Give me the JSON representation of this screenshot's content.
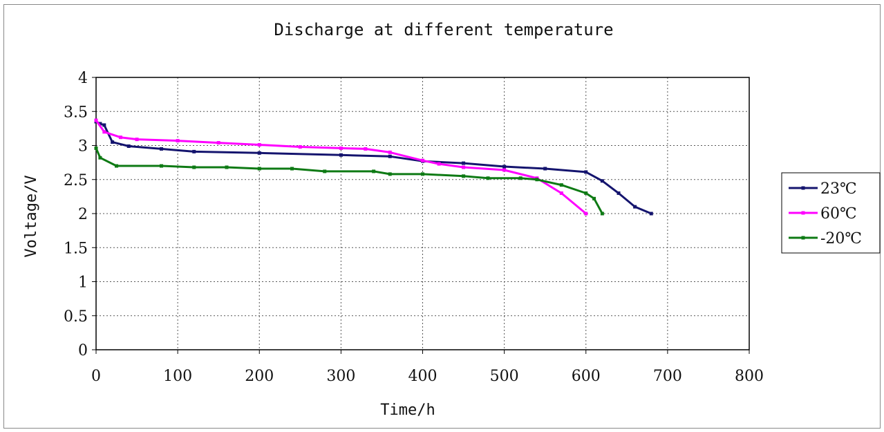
{
  "chart_data": {
    "type": "line",
    "title": "Discharge at different temperature",
    "xlabel": "Time/h",
    "ylabel": "Voltage/V",
    "xlim": [
      0,
      800
    ],
    "ylim": [
      0,
      4
    ],
    "x_ticks": [
      "0",
      "100",
      "200",
      "300",
      "400",
      "500",
      "600",
      "700",
      "800"
    ],
    "y_ticks": [
      "0",
      "0.5",
      "1",
      "1.5",
      "2",
      "2.5",
      "3",
      "3.5",
      "4"
    ],
    "grid": true,
    "legend_position": "right",
    "series": [
      {
        "name": "23℃",
        "color": "#14146e",
        "points": [
          [
            0,
            3.35
          ],
          [
            5,
            3.32
          ],
          [
            10,
            3.3
          ],
          [
            20,
            3.05
          ],
          [
            40,
            2.99
          ],
          [
            80,
            2.95
          ],
          [
            120,
            2.91
          ],
          [
            200,
            2.89
          ],
          [
            300,
            2.86
          ],
          [
            360,
            2.84
          ],
          [
            400,
            2.77
          ],
          [
            450,
            2.74
          ],
          [
            500,
            2.69
          ],
          [
            550,
            2.66
          ],
          [
            600,
            2.61
          ],
          [
            620,
            2.48
          ],
          [
            640,
            2.3
          ],
          [
            660,
            2.1
          ],
          [
            680,
            2.0
          ]
        ]
      },
      {
        "name": "60℃",
        "color": "#ff00ff",
        "points": [
          [
            0,
            3.37
          ],
          [
            10,
            3.2
          ],
          [
            30,
            3.12
          ],
          [
            50,
            3.09
          ],
          [
            100,
            3.07
          ],
          [
            150,
            3.04
          ],
          [
            200,
            3.01
          ],
          [
            250,
            2.98
          ],
          [
            300,
            2.96
          ],
          [
            330,
            2.95
          ],
          [
            360,
            2.9
          ],
          [
            400,
            2.78
          ],
          [
            420,
            2.73
          ],
          [
            450,
            2.68
          ],
          [
            500,
            2.64
          ],
          [
            540,
            2.52
          ],
          [
            570,
            2.3
          ],
          [
            600,
            2.0
          ]
        ]
      },
      {
        "name": "-20℃",
        "color": "#0e7a14",
        "points": [
          [
            0,
            2.96
          ],
          [
            5,
            2.82
          ],
          [
            25,
            2.7
          ],
          [
            80,
            2.7
          ],
          [
            120,
            2.68
          ],
          [
            160,
            2.68
          ],
          [
            200,
            2.66
          ],
          [
            240,
            2.66
          ],
          [
            280,
            2.62
          ],
          [
            340,
            2.62
          ],
          [
            360,
            2.58
          ],
          [
            400,
            2.58
          ],
          [
            450,
            2.55
          ],
          [
            480,
            2.52
          ],
          [
            520,
            2.52
          ],
          [
            540,
            2.5
          ],
          [
            570,
            2.42
          ],
          [
            600,
            2.3
          ],
          [
            610,
            2.22
          ],
          [
            620,
            2.0
          ]
        ]
      }
    ]
  }
}
